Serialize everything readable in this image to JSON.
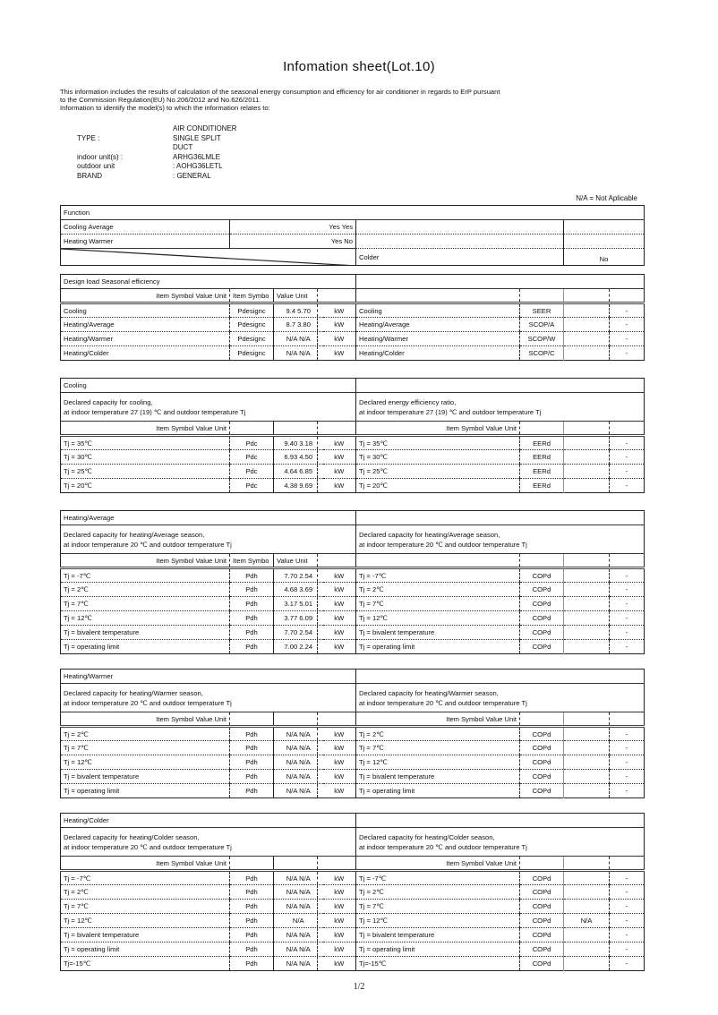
{
  "title": "Infomation sheet(Lot.10)",
  "intro": [
    "This information includes the results of calculation of the seasonal energy consumption and efficiency for air conditioner in regards to ErP pursuant",
    "to the Commission Regulation(EU) No.206/2012 and No.626/2011.",
    "Information to identify the model(s) to which the information relates to:"
  ],
  "identification": [
    {
      "key": "",
      "value": "AIR CONDITIONER"
    },
    {
      "key": "TYPE :",
      "value": "SINGLE SPLIT"
    },
    {
      "key": "",
      "value": "DUCT"
    },
    {
      "key": "indoor unit(s) :",
      "value": "ARHG36LMLE"
    },
    {
      "key": "outdoor unit",
      "value": ": AOHG36LETL"
    },
    {
      "key": "BRAND",
      "value": ": GENERAL"
    }
  ],
  "na_note": "N/A = Not Aplicable",
  "function": {
    "title": "Function",
    "rows": [
      {
        "label": "Cooling Average",
        "value": "Yes Yes",
        "right_label": "",
        "right_value": ""
      },
      {
        "label": "Heating Warmer",
        "value": "Yes No",
        "right_label": "",
        "right_value": ""
      },
      {
        "label": "",
        "value": "",
        "right_label": "Colder",
        "right_value": "No"
      }
    ]
  },
  "sections": [
    {
      "title": "Design load Seasonal efficiency",
      "top": 306,
      "desc_left": "",
      "desc_right": "",
      "header": {
        "left": "Item Symbol Value Unit",
        "sym": "Item Symbo",
        "val": "Value Unit",
        "right": ""
      },
      "rows": [
        {
          "l": "Cooling",
          "sym": "Pdesignc",
          "val": "9.4 5.70",
          "unit": "kW",
          "r": "Cooling",
          "rsym": "SEER",
          "rval": "",
          "dash": "-"
        },
        {
          "l": "Heating/Average",
          "sym": "Pdesignc",
          "val": "8.7 3.80",
          "unit": "kW",
          "r": "Heating/Average",
          "rsym": "SCOP/A",
          "rval": "",
          "dash": "-"
        },
        {
          "l": "Heating/Warmer",
          "sym": "Pdesignc",
          "val": "N/A N/A",
          "unit": "kW",
          "r": "Heating/Warmer",
          "rsym": "SCOP/W",
          "rval": "",
          "dash": "-"
        },
        {
          "l": "Heating/Colder",
          "sym": "Pdesignc",
          "val": "N/A N/A",
          "unit": "kW",
          "r": "Heating/Colder",
          "rsym": "SCOP/C",
          "rval": "",
          "dash": "-"
        }
      ]
    },
    {
      "title": "Cooling",
      "top": 422,
      "desc_left": "Declared capacity for cooling,\n at indoor temperature 27 (19) ℃ and outdoor temperature Tj",
      "desc_right": "Declared energy efficiency ratio,\n at indoor temperature 27 (19) ℃ and outdoor temperature Tj",
      "header": {
        "left": "Item Symbol Value Unit",
        "sym": "",
        "val": "",
        "right": "Item Symbol Value Unit"
      },
      "rows": [
        {
          "l": "Tj = 35℃",
          "sym": "Pdc",
          "val": "9.40 3.18",
          "unit": "kW",
          "r": "Tj = 35℃",
          "rsym": "EERd",
          "rval": "",
          "dash": "-"
        },
        {
          "l": "Tj = 30℃",
          "sym": "Pdc",
          "val": "6.93 4.50",
          "unit": "kW",
          "r": "Tj = 30℃",
          "rsym": "EERd",
          "rval": "",
          "dash": "-"
        },
        {
          "l": "Tj = 25℃",
          "sym": "Pdc",
          "val": "4.64 6.85",
          "unit": "kW",
          "r": "Tj = 25℃",
          "rsym": "EERd",
          "rval": "",
          "dash": "-"
        },
        {
          "l": "Tj = 20℃",
          "sym": "Pdc",
          "val": "4.38 9.69",
          "unit": "kW",
          "r": "Tj = 20℃",
          "rsym": "EERd",
          "rval": "",
          "dash": "-"
        }
      ]
    },
    {
      "title": "Heating/Average",
      "top": 570,
      "desc_left": "Declared capacity for heating/Average season,\n at indoor temperature 20 ℃ and outdoor temperature Tj",
      "desc_right": "Declared capacity for heating/Average season,\n at indoor temperature 20 ℃ and outdoor temperature Tj",
      "header": {
        "left": "Item Symbol Value Unit",
        "sym": "Item Symbo",
        "val": "Value Unit",
        "right": ""
      },
      "rows": [
        {
          "l": "Tj = -7℃",
          "sym": "Pdh",
          "val": "7.70 2.54",
          "unit": "kW",
          "r": "Tj = -7℃",
          "rsym": "COPd",
          "rval": "",
          "dash": "-"
        },
        {
          "l": "Tj = 2℃",
          "sym": "Pdh",
          "val": "4.68 3.69",
          "unit": "kW",
          "r": "Tj = 2℃",
          "rsym": "COPd",
          "rval": "",
          "dash": "-"
        },
        {
          "l": "Tj = 7℃",
          "sym": "Pdh",
          "val": "3.17 5.01",
          "unit": "kW",
          "r": "Tj = 7℃",
          "rsym": "COPd",
          "rval": "",
          "dash": "-"
        },
        {
          "l": "Tj = 12℃",
          "sym": "Pdh",
          "val": "3.77 6.09",
          "unit": "kW",
          "r": "Tj = 12℃",
          "rsym": "COPd",
          "rval": "",
          "dash": "-"
        },
        {
          "l": "Tj = bivalent temperature",
          "sym": "Pdh",
          "val": "7.70 2.54",
          "unit": "kW",
          "r": "Tj = bivalent temperature",
          "rsym": "COPd",
          "rval": "",
          "dash": "-"
        },
        {
          "l": "Tj = operating limit",
          "sym": "Pdh",
          "val": "7.00 2.24",
          "unit": "kW",
          "r": "Tj = operating limit",
          "rsym": "COPd",
          "rval": "",
          "dash": "-"
        }
      ]
    },
    {
      "title": "Heating/Warmer",
      "top": 747,
      "desc_left": "Declared capacity for heating/Warmer season,\nat indoor temperature 20 ℃ and outdoor temperature Tj",
      "desc_right": "Declared capacity for heating/Warmer season,\nat indoor temperature 20 ℃ and outdoor temperature Tj",
      "header": {
        "left": "Item Symbol Value Unit",
        "sym": "",
        "val": "",
        "right": "Item Symbol Value Unit"
      },
      "rows": [
        {
          "l": "Tj = 2℃",
          "sym": "Pdh",
          "val": "N/A N/A",
          "unit": "kW",
          "r": "Tj = 2℃",
          "rsym": "COPd",
          "rval": "",
          "dash": "-"
        },
        {
          "l": "Tj = 7℃",
          "sym": "Pdh",
          "val": "N/A N/A",
          "unit": "kW",
          "r": "Tj = 7℃",
          "rsym": "COPd",
          "rval": "",
          "dash": "-"
        },
        {
          "l": "Tj = 12℃",
          "sym": "Pdh",
          "val": "N/A N/A",
          "unit": "kW",
          "r": "Tj = 12℃",
          "rsym": "COPd",
          "rval": "",
          "dash": "-"
        },
        {
          "l": "Tj = bivalent temperature",
          "sym": "Pdh",
          "val": "N/A N/A",
          "unit": "kW",
          "r": "Tj = bivalent temperature",
          "rsym": "COPd",
          "rval": "",
          "dash": "-"
        },
        {
          "l": "Tj = operating limit",
          "sym": "Pdh",
          "val": "N/A N/A",
          "unit": "kW",
          "r": "Tj = operating limit",
          "rsym": "COPd",
          "rval": "",
          "dash": "-"
        }
      ]
    },
    {
      "title": "Heating/Colder",
      "top": 908,
      "desc_left": "Declared capacity for heating/Colder season,\n at indoor temperature 20 ℃ and outdoor temperature Tj",
      "desc_right": "Declared capacity for heating/Colder season,\n at indoor temperature 20 ℃ and outdoor temperature Tj",
      "header": {
        "left": "Item Symbol Value Unit",
        "sym": "",
        "val": "",
        "right": "Item Symbol Value Unit"
      },
      "rows": [
        {
          "l": "Tj = -7℃",
          "sym": "Pdh",
          "val": "N/A N/A",
          "unit": "kW",
          "r": "Tj = -7℃",
          "rsym": "COPd",
          "rval": "",
          "dash": "-"
        },
        {
          "l": "Tj = 2℃",
          "sym": "Pdh",
          "val": "N/A N/A",
          "unit": "kW",
          "r": "Tj = 2℃",
          "rsym": "COPd",
          "rval": "",
          "dash": "-"
        },
        {
          "l": "Tj = 7℃",
          "sym": "Pdh",
          "val": "N/A N/A",
          "unit": "kW",
          "r": "Tj = 7℃",
          "rsym": "COPd",
          "rval": "",
          "dash": "-"
        },
        {
          "l": "Tj = 12℃",
          "sym": "Pdh",
          "val": "N/A",
          "unit": "kW",
          "r": "Tj = 12℃",
          "rsym": "COPd",
          "rval": "N/A",
          "dash": "-"
        },
        {
          "l": "Tj = bivalent temperature",
          "sym": "Pdh",
          "val": "N/A N/A",
          "unit": "kW",
          "r": "Tj = bivalent temperature",
          "rsym": "COPd",
          "rval": "",
          "dash": "-"
        },
        {
          "l": "Tj = operating limit",
          "sym": "Pdh",
          "val": "N/A N/A",
          "unit": "kW",
          "r": "Tj = operating limit",
          "rsym": "COPd",
          "rval": "",
          "dash": "-"
        },
        {
          "l": "Tj=-15℃",
          "sym": "Pdh",
          "val": "N/A N/A",
          "unit": "kW",
          "r": "Tj=-15℃",
          "rsym": "COPd",
          "rval": "",
          "dash": "-"
        }
      ]
    }
  ],
  "footer": "1/2"
}
